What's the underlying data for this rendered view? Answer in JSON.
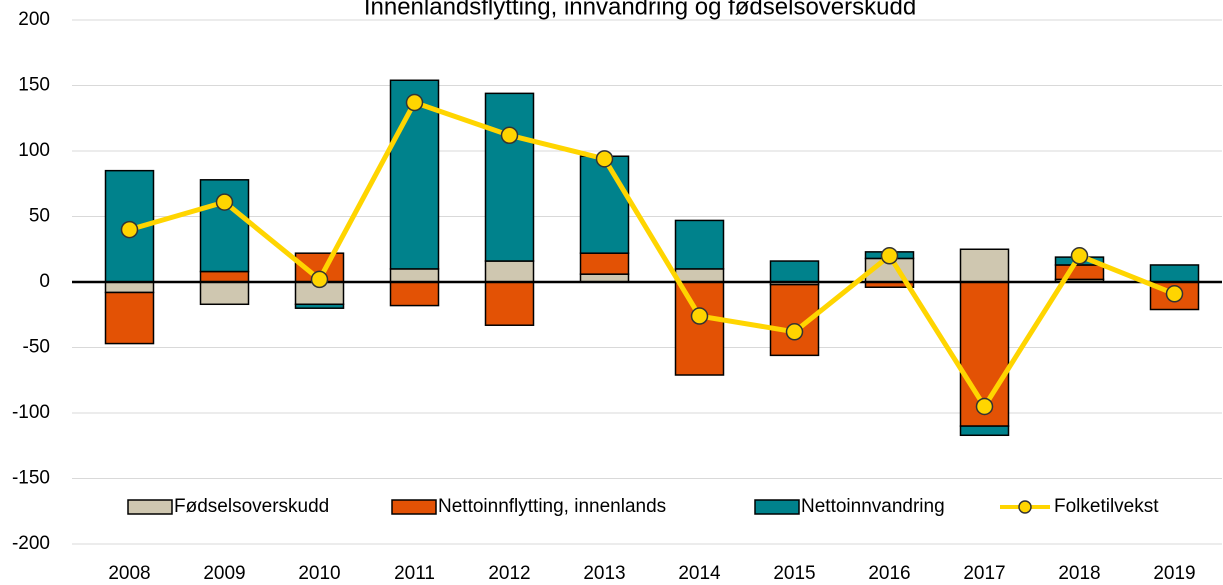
{
  "chart_data": {
    "type": "bar",
    "stacked": true,
    "title": "Innenlandsflytting, innvandring og fødselsoverskudd",
    "categories": [
      "2008",
      "2009",
      "2010",
      "2011",
      "2012",
      "2013",
      "2014",
      "2015",
      "2016",
      "2017",
      "2018",
      "2019"
    ],
    "series": [
      {
        "name": "Fødselsoverskudd",
        "type": "bar",
        "color": "#cfc7b0",
        "values": [
          -8,
          -17,
          -17,
          10,
          16,
          6,
          10,
          -2,
          18,
          25,
          2,
          0
        ]
      },
      {
        "name": "Nettoinnflytting, innenlands",
        "type": "bar",
        "color": "#e35205",
        "values": [
          -39,
          8,
          22,
          -18,
          -33,
          16,
          -71,
          -54,
          -4,
          -110,
          11,
          -21
        ]
      },
      {
        "name": "Nettoinnvandring",
        "type": "bar",
        "color": "#00828c",
        "values": [
          85,
          70,
          -3,
          144,
          128,
          74,
          37,
          16,
          5,
          -7,
          6,
          13
        ]
      },
      {
        "name": "Folketilvekst",
        "type": "line",
        "color": "#ffd500",
        "values": [
          40,
          61,
          2,
          137,
          112,
          94,
          -26,
          -38,
          20,
          -95,
          20,
          -9
        ]
      }
    ],
    "ylim": [
      -200,
      200
    ],
    "yticks": [
      -200,
      -150,
      -100,
      -50,
      0,
      50,
      100,
      150,
      200
    ],
    "grid": true,
    "legend": "bottom"
  }
}
